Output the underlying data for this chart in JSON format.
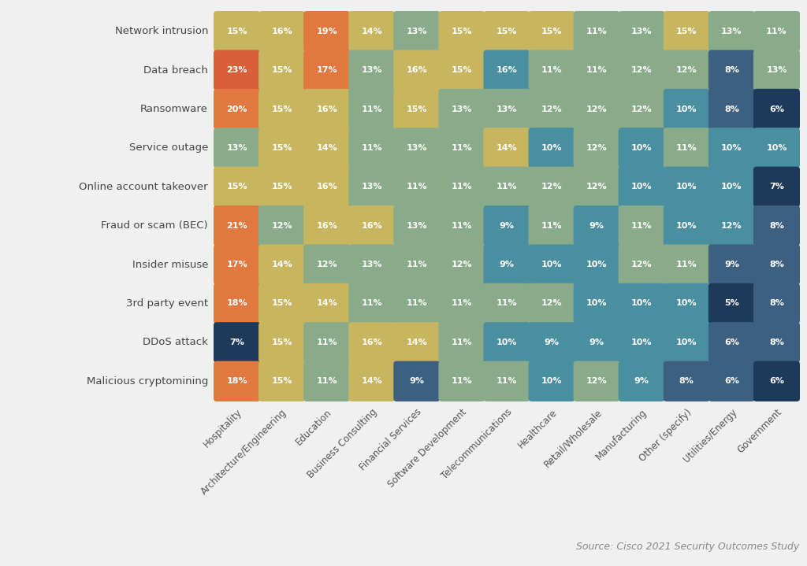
{
  "rows": [
    "Network intrusion",
    "Data breach",
    "Ransomware",
    "Service outage",
    "Online account takeover",
    "Fraud or scam (BEC)",
    "Insider misuse",
    "3rd party event",
    "DDoS attack",
    "Malicious cryptomining"
  ],
  "cols": [
    "Hospitality",
    "Architecture/Engineering",
    "Education",
    "Business Consulting",
    "Financial Services",
    "Software Development",
    "Telecommunications",
    "Healthcare",
    "Retail/Wholesale",
    "Manufacturing",
    "Other (specify)",
    "Utilities/Energy",
    "Government"
  ],
  "values": [
    [
      15,
      16,
      19,
      14,
      13,
      15,
      15,
      15,
      11,
      13,
      15,
      13,
      11
    ],
    [
      23,
      15,
      17,
      13,
      16,
      15,
      16,
      11,
      11,
      12,
      12,
      8,
      13
    ],
    [
      20,
      15,
      16,
      11,
      15,
      13,
      13,
      12,
      12,
      12,
      10,
      8,
      6
    ],
    [
      13,
      15,
      14,
      11,
      13,
      11,
      14,
      10,
      12,
      10,
      11,
      10,
      10
    ],
    [
      15,
      15,
      16,
      13,
      11,
      11,
      11,
      12,
      12,
      10,
      10,
      10,
      7
    ],
    [
      21,
      12,
      16,
      16,
      13,
      11,
      9,
      11,
      9,
      11,
      10,
      12,
      8
    ],
    [
      17,
      14,
      12,
      13,
      11,
      12,
      9,
      10,
      10,
      12,
      11,
      9,
      8
    ],
    [
      18,
      15,
      14,
      11,
      11,
      11,
      11,
      12,
      10,
      10,
      10,
      5,
      8
    ],
    [
      7,
      15,
      11,
      16,
      14,
      11,
      10,
      9,
      9,
      10,
      10,
      6,
      8
    ],
    [
      18,
      15,
      11,
      14,
      9,
      11,
      11,
      10,
      12,
      9,
      8,
      6,
      6
    ]
  ],
  "color_thresholds": [
    {
      "min": 19,
      "max": 99,
      "color": "#d95f3b"
    },
    {
      "min": 17,
      "max": 18,
      "color": "#e07840"
    },
    {
      "min": 14,
      "max": 16,
      "color": "#c8b560"
    },
    {
      "min": 11,
      "max": 13,
      "color": "#8aab8a"
    },
    {
      "min": 9,
      "max": 10,
      "color": "#4a8fa0"
    },
    {
      "min": 7,
      "max": 8,
      "color": "#3d6080"
    },
    {
      "min": 0,
      "max": 6,
      "color": "#1e3a5a"
    }
  ],
  "override_colors": {
    "0,2": "#e07840",
    "1,0": "#d95f3b",
    "2,0": "#e07840",
    "5,0": "#e07840",
    "8,0": "#1e3a5a",
    "1,11": "#3d6080",
    "2,12": "#1e3a5a",
    "4,12": "#1e3a5a",
    "7,11": "#1e3a5a",
    "8,11": "#3d6080",
    "8,12": "#3d6080",
    "9,4": "#3d6080",
    "9,11": "#3d6080",
    "9,12": "#1e3a5a",
    "5,6": "#4a8fa0",
    "5,11": "#4a8fa0",
    "1,6": "#4a8fa0",
    "6,11": "#3d6080",
    "6,12": "#3d6080",
    "3,7": "#4a8fa0",
    "3,11": "#4a8fa0"
  },
  "background_color": "#f0f0f0",
  "text_color": "#ffffff",
  "source_text": "Source: Cisco 2021 Security Outcomes Study"
}
